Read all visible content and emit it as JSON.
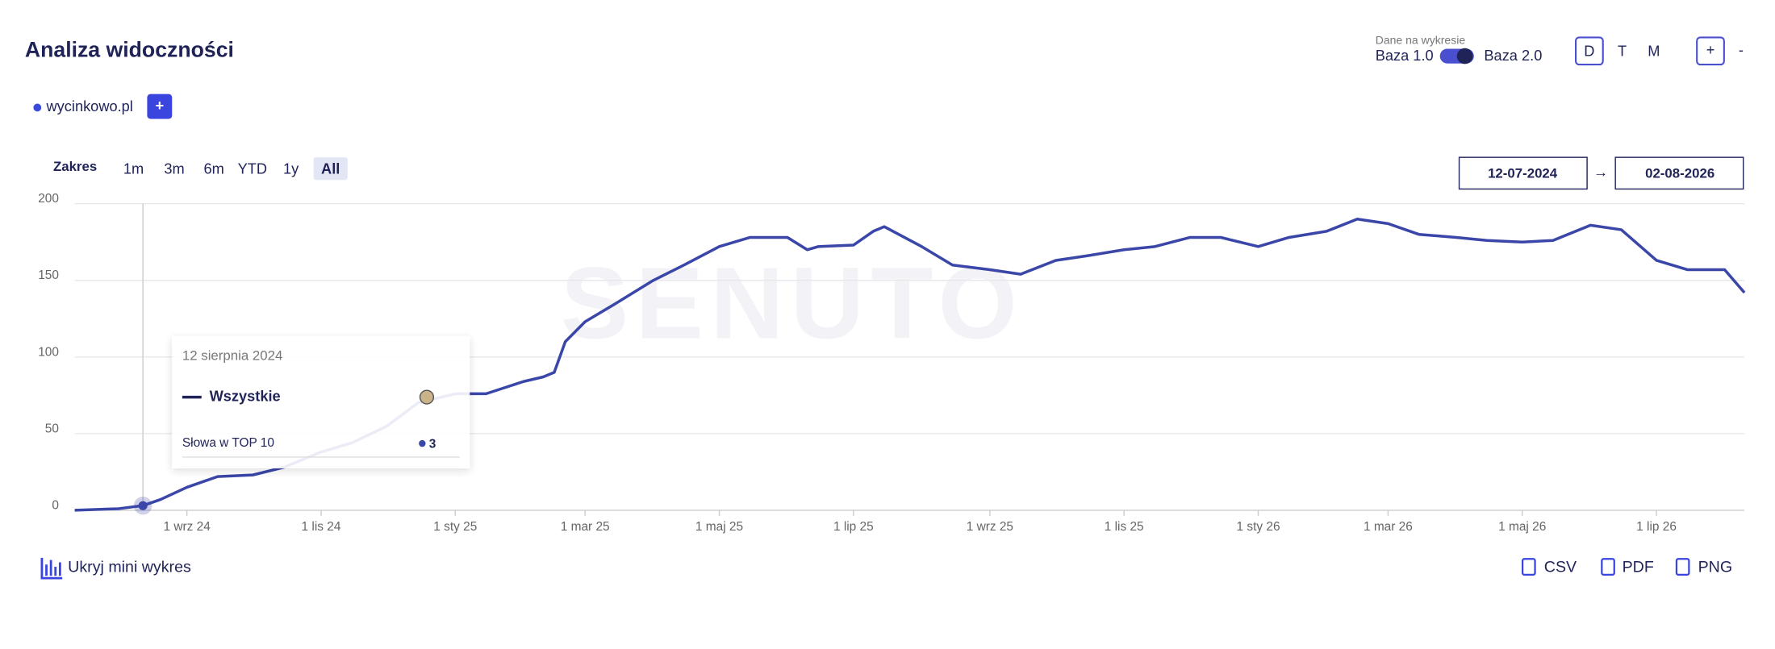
{
  "header": {
    "title": "Analiza widoczności",
    "data_label": "Dane na wykresie",
    "base_left": "Baza 1.0",
    "base_right": "Baza 2.0",
    "granularity": [
      "D",
      "T",
      "M"
    ],
    "zoom_in": "+",
    "zoom_out": "-"
  },
  "domain": {
    "name": "wycinkowo.pl",
    "add": "+"
  },
  "range": {
    "label": "Zakres",
    "options": [
      "1m",
      "3m",
      "6m",
      "YTD",
      "1y",
      "All"
    ],
    "selected": 5,
    "from": "12-07-2024",
    "arrow": "→",
    "to": "02-08-2026"
  },
  "footer": {
    "toggle": "Ukryj mini wykres",
    "exports": [
      "CSV",
      "PDF",
      "PNG"
    ]
  },
  "watermark": "SENUTO",
  "chart_data": {
    "type": "line",
    "grid": true,
    "x": [
      "2024-07-12",
      "2024-08-01",
      "2024-08-12",
      "2024-08-20",
      "2024-09-01",
      "2024-09-15",
      "2024-10-01",
      "2024-10-15",
      "2024-11-01",
      "2024-11-15",
      "2024-12-01",
      "2024-12-15",
      "2025-01-01",
      "2025-01-15",
      "2025-02-01",
      "2025-02-10",
      "2025-02-15",
      "2025-02-20",
      "2025-03-01",
      "2025-03-15",
      "2025-04-01",
      "2025-04-15",
      "2025-05-01",
      "2025-05-15",
      "2025-06-01",
      "2025-06-10",
      "2025-06-15",
      "2025-07-01",
      "2025-07-10",
      "2025-07-15",
      "2025-08-01",
      "2025-08-15",
      "2025-09-01",
      "2025-09-15",
      "2025-10-01",
      "2025-10-15",
      "2025-11-01",
      "2025-11-15",
      "2025-12-01",
      "2025-12-15",
      "2026-01-01",
      "2026-01-15",
      "2026-02-01",
      "2026-02-15",
      "2026-03-01",
      "2026-03-15",
      "2026-04-01",
      "2026-04-15",
      "2026-05-01",
      "2026-05-15",
      "2026-06-01",
      "2026-06-15",
      "2026-07-01",
      "2026-07-15",
      "2026-08-01",
      "2026-08-10"
    ],
    "series": [
      {
        "name": "Wszystkie",
        "color": "#3a46a8",
        "values": [
          0,
          1,
          3,
          7,
          15,
          22,
          23,
          28,
          38,
          44,
          55,
          70,
          76,
          76,
          84,
          87,
          90,
          110,
          123,
          135,
          150,
          160,
          172,
          178,
          178,
          170,
          172,
          173,
          182,
          185,
          172,
          160,
          157,
          154,
          163,
          166,
          170,
          172,
          178,
          178,
          172,
          178,
          182,
          190,
          187,
          180,
          178,
          176,
          175,
          176,
          186,
          183,
          163,
          157,
          157,
          142
        ]
      }
    ],
    "xlim": [
      "2024-07-12",
      "2026-08-10"
    ],
    "xticks": [
      {
        "value": "2024-09-01",
        "label": "1 wrz 24"
      },
      {
        "value": "2024-11-01",
        "label": "1 lis 24"
      },
      {
        "value": "2025-01-01",
        "label": "1 sty 25"
      },
      {
        "value": "2025-03-01",
        "label": "1 mar 25"
      },
      {
        "value": "2025-05-01",
        "label": "1 maj 25"
      },
      {
        "value": "2025-07-01",
        "label": "1 lip 25"
      },
      {
        "value": "2025-09-01",
        "label": "1 wrz 25"
      },
      {
        "value": "2025-11-01",
        "label": "1 lis 25"
      },
      {
        "value": "2026-01-01",
        "label": "1 sty 26"
      },
      {
        "value": "2026-03-01",
        "label": "1 mar 26"
      },
      {
        "value": "2026-05-01",
        "label": "1 maj 26"
      },
      {
        "value": "2026-07-01",
        "label": "1 lip 26"
      }
    ],
    "ylim": [
      0,
      200
    ],
    "yticks": [
      0,
      50,
      100,
      150,
      200
    ],
    "tooltip": {
      "index": 2,
      "date": "12 sierpnia 2024",
      "metric": "Słowa w TOP 10"
    }
  }
}
